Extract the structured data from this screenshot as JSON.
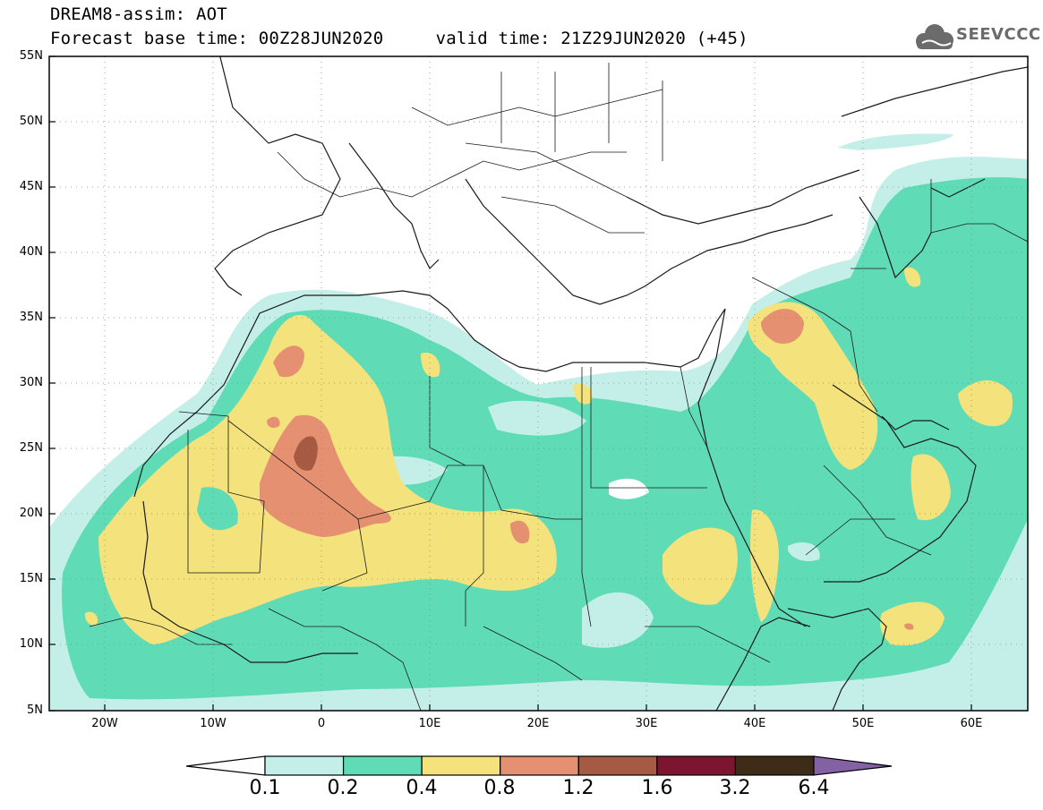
{
  "header": {
    "title": "DREAM8-assim: AOT",
    "subtitle": "Forecast base time: 00Z28JUN2020     valid time: 21Z29JUN2020 (+45)"
  },
  "logo": {
    "text": "SEEVCCC",
    "icon": "cloud-logo-icon"
  },
  "axes": {
    "lat_ticks": [
      "55N",
      "50N",
      "45N",
      "40N",
      "35N",
      "30N",
      "25N",
      "20N",
      "15N",
      "10N",
      "5N"
    ],
    "lon_ticks": [
      "20W",
      "10W",
      "0",
      "10E",
      "20E",
      "30E",
      "40E",
      "50E",
      "60E"
    ],
    "lat_range": [
      5,
      55
    ],
    "lon_range": [
      -25,
      65
    ],
    "grid": "dotted"
  },
  "colorbar": {
    "labels": [
      "0.1",
      "0.2",
      "0.4",
      "0.8",
      "1.2",
      "1.6",
      "3.2",
      "6.4"
    ],
    "colors": [
      "#c4efe9",
      "#5fdcb5",
      "#f4e27c",
      "#e59070",
      "#a65a43",
      "#7e1530",
      "#3f2c18",
      "#8461a3"
    ]
  },
  "map_palette": {
    "land_outline": "#1a1a1a",
    "aot_light": "#c4efe9",
    "aot_medium": "#5fdcb5",
    "aot_high": "#f4e27c",
    "aot_higher": "#e59070",
    "aot_very_high": "#a65a43"
  }
}
